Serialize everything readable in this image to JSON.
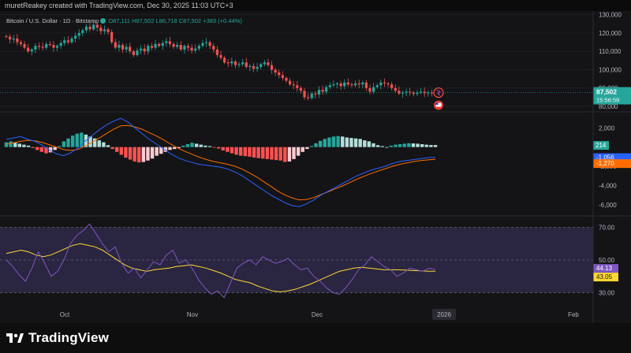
{
  "header": {
    "attribution": "muretReakey created with TradingView.com, Dec 30, 2025 11:03 UTC+3"
  },
  "legend": {
    "symbol": "Bitcoin / U.S. Dollar · 1D · Bitstamp",
    "open": "O87,111",
    "high": "H87,502",
    "low": "L86,718",
    "close": "C87,502",
    "change": "+383 (+0.44%)"
  },
  "price_panel": {
    "last_price_label": "87,502",
    "countdown_label": "15:56:59",
    "colors": {
      "up": "#26a69a",
      "down": "#ef5350"
    }
  },
  "macd_panel": {
    "histogram_label": "214",
    "macd_label": "-1,056",
    "signal_label": "-1,270",
    "colors": {
      "macd": "#2962ff",
      "signal": "#ff6d00"
    }
  },
  "rsi_panel": {
    "rsi_label": "44.13",
    "ma_label": "43.05",
    "colors": {
      "rsi": "#7e57c2",
      "ma": "#fdd835"
    }
  },
  "time_axis": {
    "labels": [
      "Oct",
      "Nov",
      "Dec",
      "2026",
      "Feb"
    ]
  },
  "footer": {
    "brand": "TradingView"
  },
  "chart_data": [
    {
      "type": "candlestick",
      "title": "Bitcoin / U.S. Dollar · 1D · Bitstamp",
      "y_ticks": [
        130000,
        120000,
        110000,
        100000,
        90000,
        80000
      ],
      "ylim": [
        77000,
        132000
      ],
      "x_ticks": [
        "Oct",
        "Nov",
        "Dec",
        "2026",
        "Feb"
      ],
      "close_series": [
        118000,
        116500,
        117000,
        115000,
        114000,
        112000,
        110000,
        111000,
        113000,
        112500,
        112000,
        114000,
        113500,
        112000,
        113000,
        114500,
        116000,
        115000,
        117000,
        118500,
        120000,
        121500,
        123500,
        122000,
        124500,
        123000,
        121000,
        122000,
        120500,
        115000,
        112000,
        113500,
        111000,
        112500,
        110000,
        108000,
        110500,
        111500,
        110000,
        113000,
        112000,
        114000,
        113000,
        114500,
        115500,
        114000,
        112500,
        113500,
        111000,
        113000,
        112000,
        110500,
        111500,
        113000,
        114500,
        115000,
        113000,
        111000,
        108000,
        106500,
        104000,
        103500,
        104500,
        102500,
        103000,
        104000,
        101500,
        102000,
        100500,
        101500,
        103000,
        104000,
        102500,
        100000,
        98500,
        97000,
        95500,
        94000,
        92000,
        91500,
        90000,
        88500,
        85000,
        84500,
        87000,
        86500,
        89000,
        88000,
        90500,
        91500,
        92000,
        92500,
        91000,
        93000,
        92000,
        91500,
        92500,
        92000,
        93000,
        90000,
        88000,
        90500,
        91500,
        93000,
        92500,
        92000,
        90000,
        88500,
        87000,
        87500,
        88000,
        87500,
        86800,
        87500,
        88000,
        87200,
        87500,
        87100,
        87502
      ],
      "last": 87502,
      "open": 87111,
      "high": 87502,
      "low": 86718
    },
    {
      "type": "histogram+line",
      "name": "MACD",
      "y_ticks": [
        2000,
        0,
        -2000,
        -4000,
        -6000
      ],
      "ylim": [
        -7000,
        3500
      ],
      "histogram": [
        500,
        600,
        450,
        350,
        250,
        150,
        -100,
        -300,
        -500,
        -650,
        -550,
        -300,
        100,
        600,
        900,
        1200,
        1400,
        1500,
        1300,
        1100,
        900,
        700,
        500,
        200,
        -200,
        -500,
        -800,
        -1100,
        -1300,
        -1500,
        -1600,
        -1550,
        -1400,
        -1200,
        -900,
        -700,
        -500,
        -300,
        -200,
        -100,
        150,
        300,
        450,
        350,
        250,
        150,
        100,
        -50,
        -150,
        -350,
        -500,
        -650,
        -800,
        -900,
        -950,
        -1000,
        -1100,
        -1150,
        -1200,
        -1250,
        -1300,
        -1350,
        -1400,
        -1550,
        -1500,
        -1250,
        -900,
        -500,
        -200,
        100,
        400,
        650,
        850,
        1000,
        1100,
        1150,
        1100,
        1000,
        950,
        900,
        850,
        700,
        600,
        400,
        200,
        100,
        0,
        150,
        250,
        300,
        350,
        400,
        380,
        350,
        300,
        250,
        220,
        214
      ],
      "macd": [
        800,
        950,
        1100,
        800,
        600,
        200,
        -300,
        -700,
        -900,
        -600,
        -100,
        600,
        1200,
        1800,
        2300,
        2700,
        3000,
        2600,
        2000,
        1400,
        800,
        300,
        -200,
        -700,
        -1100,
        -1400,
        -1600,
        -1800,
        -1900,
        -2000,
        -2100,
        -2300,
        -2600,
        -3000,
        -3500,
        -4000,
        -4500,
        -5000,
        -5400,
        -5800,
        -6100,
        -6200,
        -5900,
        -5500,
        -5000,
        -4600,
        -4200,
        -3800,
        -3400,
        -3000,
        -2700,
        -2400,
        -2200,
        -2000,
        -1700,
        -1500,
        -1400,
        -1300,
        -1200,
        -1100,
        -1056
      ],
      "signal": [
        300,
        450,
        600,
        700,
        650,
        500,
        250,
        0,
        -250,
        -350,
        -250,
        100,
        500,
        950,
        1400,
        1850,
        2200,
        2250,
        2100,
        1850,
        1500,
        1150,
        750,
        300,
        -100,
        -450,
        -750,
        -1050,
        -1300,
        -1500,
        -1650,
        -1800,
        -2000,
        -2300,
        -2700,
        -3100,
        -3600,
        -4100,
        -4600,
        -5000,
        -5300,
        -5500,
        -5450,
        -5250,
        -4950,
        -4650,
        -4350,
        -4050,
        -3700,
        -3350,
        -3050,
        -2750,
        -2500,
        -2250,
        -2000,
        -1800,
        -1650,
        -1500,
        -1400,
        -1330,
        -1270
      ]
    },
    {
      "type": "line",
      "name": "RSI",
      "y_ticks": [
        70,
        50,
        30
      ],
      "tick_labels": [
        "70.00",
        "50.00",
        "30.00"
      ],
      "ylim": [
        22,
        76
      ],
      "band": [
        30,
        70
      ],
      "rsi": [
        50,
        46,
        41,
        37,
        45,
        55,
        48,
        40,
        43,
        50,
        60,
        65,
        68,
        72,
        66,
        60,
        55,
        58,
        48,
        42,
        45,
        39,
        44,
        49,
        47,
        53,
        56,
        48,
        50,
        45,
        38,
        33,
        29,
        31,
        27,
        36,
        45,
        48,
        50,
        47,
        52,
        50,
        48,
        49,
        51,
        47,
        44,
        45,
        40,
        37,
        33,
        30,
        29,
        33,
        38,
        44,
        47,
        52,
        49,
        46,
        44,
        40,
        42,
        45,
        44,
        43,
        45,
        44.13
      ],
      "ma": [
        54,
        55,
        56,
        55,
        53,
        52,
        53,
        55,
        57,
        59,
        60,
        59,
        58,
        56,
        53,
        50,
        47,
        45,
        44,
        43,
        44,
        44.5,
        45,
        46,
        46.5,
        47,
        46,
        45,
        43.5,
        42,
        40,
        38,
        37,
        36,
        34,
        32.5,
        31,
        30.5,
        31,
        32,
        33.5,
        35,
        37,
        39,
        41,
        43,
        44,
        45,
        45.5,
        45,
        44.5,
        44,
        44,
        44,
        43.8,
        43.5,
        43.3,
        43.1,
        43.05
      ]
    }
  ]
}
